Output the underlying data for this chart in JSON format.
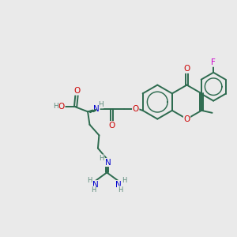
{
  "bg_color": "#eaeaea",
  "bond_color": "#2d6b4f",
  "bond_lw": 1.4,
  "atom_colors": {
    "O": "#cc0000",
    "N": "#0000cc",
    "F": "#cc00cc",
    "H": "#5a8a7a"
  },
  "font_size": 7.5,
  "xlim": [
    0,
    10
  ],
  "ylim": [
    0,
    10
  ]
}
